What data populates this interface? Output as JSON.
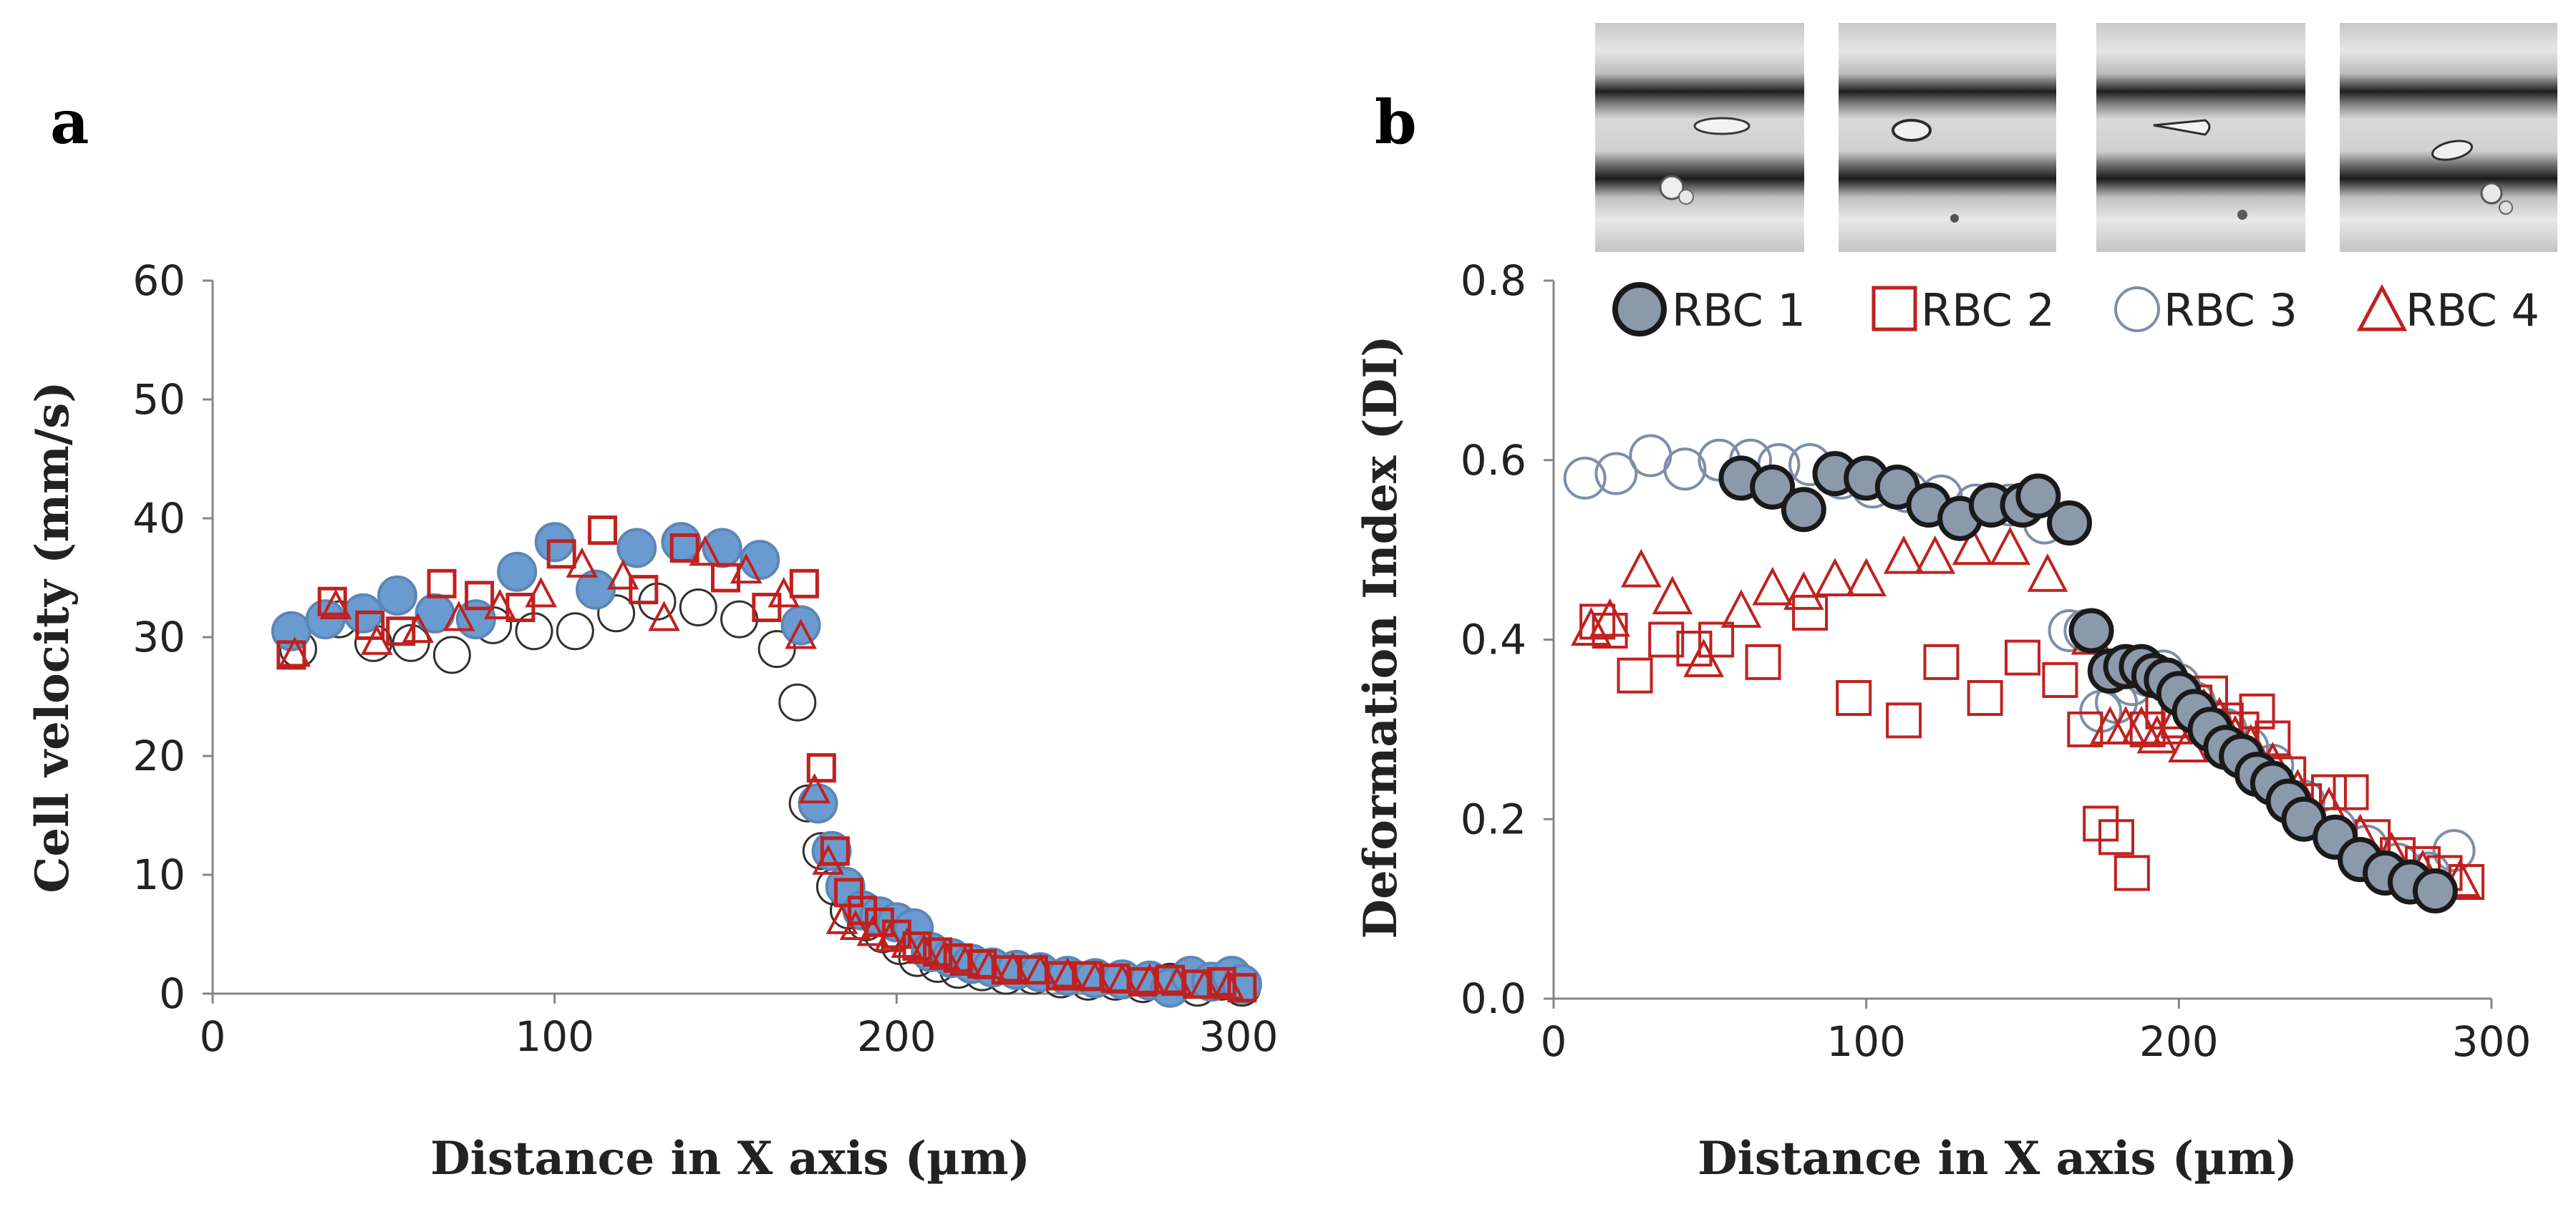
{
  "colors": {
    "rbc1_fill": "#6a9bd0",
    "rbc1_stroke": "#5b86b5",
    "rbc1b_fill": "#8b99ab",
    "rbc1b_stroke": "#1a1a1a",
    "rbc2": "#c0211f",
    "rbc3": "#303030",
    "rbc3b": "#7d8ea8",
    "rbc4": "#c0211f",
    "axis": "#868686"
  },
  "chart_data": [
    {
      "panel": "a",
      "type": "scatter",
      "xlabel": "Distance in X axis (µm)",
      "ylabel": "Cell velocity (mm/s)",
      "xlim": [
        0,
        300
      ],
      "ylim": [
        0,
        60
      ],
      "x_ticks": [
        "0",
        "100",
        "200",
        "300"
      ],
      "y_ticks": [
        "0",
        "10",
        "20",
        "30",
        "40",
        "50",
        "60"
      ],
      "grid": false,
      "series": [
        {
          "name": "RBC 1",
          "marker": "circle-filled",
          "x": [
            23,
            33,
            44,
            54,
            65,
            77,
            89,
            100,
            112,
            124,
            137,
            149,
            160,
            172,
            177,
            181,
            185,
            190,
            195,
            200,
            205,
            210,
            216,
            222,
            228,
            235,
            242,
            250,
            258,
            266,
            274,
            280,
            286,
            292,
            298,
            301
          ],
          "y": [
            30.5,
            31.5,
            32,
            33.5,
            32,
            31.5,
            35.5,
            38,
            34,
            37.5,
            38,
            37.5,
            36.5,
            31,
            16,
            12,
            9,
            7,
            6.5,
            6,
            5.5,
            3.5,
            3,
            2.5,
            2.2,
            2,
            1.8,
            1.5,
            1.3,
            1.2,
            1.1,
            0.5,
            1.5,
            1,
            1.5,
            0.8
          ]
        },
        {
          "name": "RBC 2",
          "marker": "square-open",
          "x": [
            23,
            35,
            46,
            55,
            67,
            78,
            90,
            102,
            114,
            126,
            138,
            150,
            162,
            173,
            178,
            182,
            186,
            190,
            195,
            200,
            206,
            212,
            218,
            225,
            232,
            240,
            248,
            256,
            264,
            272,
            280,
            288,
            295,
            301
          ],
          "y": [
            28.5,
            33,
            31,
            30.5,
            34.5,
            33.5,
            32.5,
            37,
            39,
            34,
            37.5,
            35,
            32.5,
            34.5,
            19,
            12,
            8.5,
            7,
            6,
            5,
            4,
            3.5,
            3,
            2.5,
            2,
            2,
            1.5,
            1.5,
            1.3,
            1,
            1.2,
            0.8,
            1,
            0.5
          ]
        },
        {
          "name": "RBC 3",
          "marker": "circle-open",
          "x": [
            25,
            37,
            47,
            58,
            70,
            82,
            94,
            106,
            118,
            130,
            142,
            154,
            165,
            171,
            174,
            178,
            182,
            186,
            191,
            196,
            201,
            206,
            212,
            218,
            225,
            232,
            240,
            248,
            256,
            264,
            272,
            280,
            288,
            295,
            301
          ],
          "y": [
            29,
            31.5,
            29.5,
            29.5,
            28.5,
            31,
            30.5,
            30.5,
            32,
            33,
            32.5,
            31.5,
            29,
            24.5,
            16,
            12,
            9,
            7,
            6,
            5,
            4,
            3,
            2.5,
            2,
            1.8,
            1.5,
            1.5,
            1.2,
            1,
            1,
            0.8,
            1,
            0.5,
            1,
            0.5
          ]
        },
        {
          "name": "RBC 4",
          "marker": "triangle-open",
          "x": [
            24,
            36,
            48,
            60,
            72,
            84,
            96,
            108,
            120,
            132,
            144,
            156,
            167,
            172,
            176,
            180,
            184,
            188,
            193,
            198,
            203,
            208,
            214,
            220,
            227,
            234,
            242,
            250,
            258,
            266,
            274,
            282,
            290,
            297
          ],
          "y": [
            28.5,
            32.5,
            29.5,
            30.5,
            31.5,
            32.5,
            33.5,
            36,
            35,
            31.5,
            37,
            35.5,
            33.5,
            30,
            17,
            11,
            6,
            5.5,
            5,
            4.5,
            4,
            3.5,
            3,
            2.5,
            2.2,
            2,
            1.8,
            1.5,
            1.2,
            1,
            1,
            0.8,
            0.6,
            0.5
          ]
        }
      ]
    },
    {
      "panel": "b",
      "type": "scatter",
      "xlabel": "Distance in X axis (µm)",
      "ylabel": "Deformation Index (DI)",
      "xlim": [
        0,
        300
      ],
      "ylim": [
        0,
        0.8
      ],
      "x_ticks": [
        "0",
        "100",
        "200",
        "300"
      ],
      "y_ticks": [
        "0.0",
        "0.2",
        "0.4",
        "0.6",
        "0.8"
      ],
      "legend": {
        "position": "top",
        "labels": [
          "RBC 1",
          "RBC 2",
          "RBC 3",
          "RBC 4"
        ]
      },
      "grid": false,
      "series": [
        {
          "name": "RBC 1",
          "marker": "circle-filled-dark-edge",
          "x": [
            60,
            70,
            80,
            90,
            100,
            110,
            120,
            130,
            140,
            150,
            155,
            165,
            172,
            178,
            183,
            188,
            192,
            196,
            200,
            205,
            210,
            215,
            220,
            225,
            230,
            235,
            240,
            250,
            258,
            266,
            274,
            282
          ],
          "y": [
            0.58,
            0.57,
            0.545,
            0.585,
            0.58,
            0.57,
            0.55,
            0.535,
            0.55,
            0.55,
            0.56,
            0.53,
            0.41,
            0.365,
            0.37,
            0.37,
            0.36,
            0.355,
            0.34,
            0.32,
            0.3,
            0.28,
            0.27,
            0.25,
            0.24,
            0.22,
            0.2,
            0.18,
            0.155,
            0.14,
            0.13,
            0.12
          ]
        },
        {
          "name": "RBC 2",
          "marker": "square-open",
          "x": [
            14,
            18,
            26,
            36,
            45,
            52,
            67,
            82,
            96,
            112,
            124,
            138,
            150,
            162,
            170,
            175,
            180,
            185,
            190,
            195,
            200,
            205,
            210,
            215,
            220,
            225,
            230,
            235,
            240,
            248,
            255,
            262,
            270,
            278,
            285,
            292
          ],
          "y": [
            0.42,
            0.41,
            0.36,
            0.4,
            0.39,
            0.4,
            0.375,
            0.43,
            0.335,
            0.31,
            0.375,
            0.335,
            0.38,
            0.355,
            0.3,
            0.195,
            0.18,
            0.14,
            0.3,
            0.32,
            0.31,
            0.33,
            0.34,
            0.31,
            0.3,
            0.32,
            0.29,
            0.25,
            0.22,
            0.23,
            0.23,
            0.18,
            0.16,
            0.15,
            0.14,
            0.13
          ]
        },
        {
          "name": "RBC 3",
          "marker": "circle-open",
          "x": [
            10,
            20,
            31,
            42,
            53,
            63,
            72,
            82,
            92,
            102,
            113,
            124,
            135,
            146,
            157,
            165,
            170,
            175,
            180,
            185,
            190,
            195,
            200,
            205,
            210,
            215,
            222,
            230,
            240,
            250,
            260,
            270,
            280,
            288
          ],
          "y": [
            0.58,
            0.585,
            0.605,
            0.59,
            0.6,
            0.6,
            0.595,
            0.595,
            0.58,
            0.57,
            0.565,
            0.56,
            0.55,
            0.55,
            0.53,
            0.41,
            0.41,
            0.32,
            0.33,
            0.35,
            0.36,
            0.365,
            0.35,
            0.33,
            0.31,
            0.3,
            0.28,
            0.26,
            0.22,
            0.19,
            0.17,
            0.15,
            0.14,
            0.165
          ]
        },
        {
          "name": "RBC 4",
          "marker": "triangle-open",
          "x": [
            12,
            18,
            28,
            38,
            48,
            60,
            70,
            80,
            90,
            100,
            112,
            122,
            134,
            146,
            158,
            172,
            178,
            183,
            188,
            193,
            198,
            203,
            208,
            213,
            218,
            223,
            230,
            238,
            248,
            258,
            268,
            278,
            290
          ],
          "y": [
            0.41,
            0.42,
            0.475,
            0.445,
            0.375,
            0.43,
            0.455,
            0.45,
            0.465,
            0.465,
            0.49,
            0.49,
            0.5,
            0.5,
            0.47,
            0.4,
            0.3,
            0.3,
            0.3,
            0.29,
            0.3,
            0.28,
            0.32,
            0.31,
            0.29,
            0.28,
            0.26,
            0.23,
            0.21,
            0.18,
            0.16,
            0.14,
            0.13
          ]
        }
      ]
    }
  ]
}
